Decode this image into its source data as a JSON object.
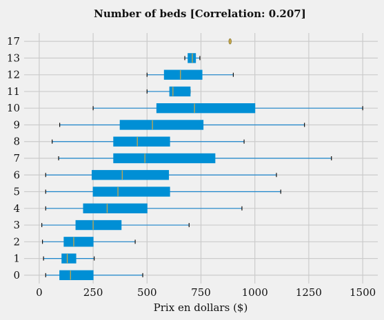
{
  "chart_data": {
    "type": "box",
    "orientation": "horizontal",
    "title": "Number of beds  [Correlation: 0.207]",
    "xlabel": "Prix  en dollars ($)",
    "ylabel": "",
    "xlim": [
      -70,
      1570
    ],
    "xticks": [
      0,
      250,
      500,
      750,
      1000,
      1250,
      1500
    ],
    "grid": true,
    "colors": {
      "box": "#008fd5",
      "median": "#c8a84b",
      "whisker": "#1a85cc",
      "background": "#f0f0f0",
      "grid": "#cbcbcb"
    },
    "categories": [
      "0",
      "1",
      "2",
      "3",
      "4",
      "5",
      "6",
      "7",
      "8",
      "9",
      "10",
      "11",
      "12",
      "13",
      "17"
    ],
    "boxes": [
      {
        "label": "0",
        "whislo": 30,
        "q1": 95,
        "med": 145,
        "q3": 250,
        "whishi": 480
      },
      {
        "label": "1",
        "whislo": 20,
        "q1": 105,
        "med": 130,
        "q3": 170,
        "whishi": 255
      },
      {
        "label": "2",
        "whislo": 15,
        "q1": 115,
        "med": 160,
        "q3": 250,
        "whishi": 445
      },
      {
        "label": "3",
        "whislo": 12,
        "q1": 170,
        "med": 250,
        "q3": 380,
        "whishi": 695
      },
      {
        "label": "4",
        "whislo": 30,
        "q1": 205,
        "med": 315,
        "q3": 500,
        "whishi": 940
      },
      {
        "label": "5",
        "whislo": 30,
        "q1": 250,
        "med": 365,
        "q3": 605,
        "whishi": 1120
      },
      {
        "label": "6",
        "whislo": 30,
        "q1": 245,
        "med": 385,
        "q3": 600,
        "whishi": 1100
      },
      {
        "label": "7",
        "whislo": 90,
        "q1": 345,
        "med": 490,
        "q3": 815,
        "whishi": 1355
      },
      {
        "label": "8",
        "whislo": 60,
        "q1": 345,
        "med": 455,
        "q3": 605,
        "whishi": 950
      },
      {
        "label": "9",
        "whislo": 95,
        "q1": 375,
        "med": 525,
        "q3": 760,
        "whishi": 1230
      },
      {
        "label": "10",
        "whislo": 250,
        "q1": 545,
        "med": 720,
        "q3": 1000,
        "whishi": 1500
      },
      {
        "label": "11",
        "whislo": 500,
        "q1": 605,
        "med": 620,
        "q3": 700,
        "whishi": 700
      },
      {
        "label": "12",
        "whislo": 500,
        "q1": 580,
        "med": 655,
        "q3": 755,
        "whishi": 900
      },
      {
        "label": "13",
        "whislo": 675,
        "q1": 690,
        "med": 710,
        "q3": 725,
        "whishi": 745
      },
      {
        "label": "17",
        "fliers": [
          885
        ]
      }
    ]
  }
}
